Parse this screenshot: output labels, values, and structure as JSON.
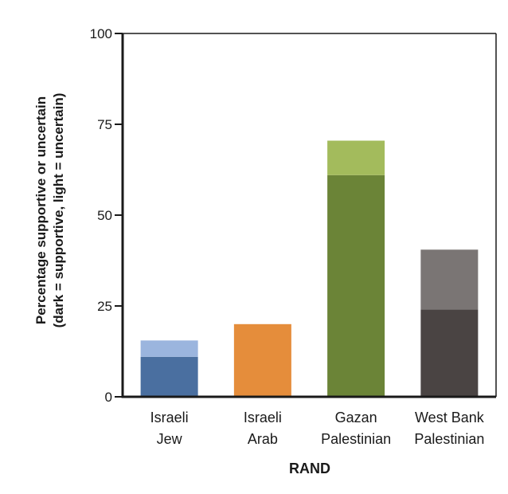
{
  "chart_data": {
    "type": "bar",
    "stacked": true,
    "categories": [
      [
        "Israeli",
        "Jew"
      ],
      [
        "Israeli",
        "Arab"
      ],
      [
        "Gazan",
        "Palestinian"
      ],
      [
        "West Bank",
        "Palestinian"
      ]
    ],
    "series": [
      {
        "values": [
          11,
          20,
          61,
          24
        ],
        "colors": [
          "#4a6fa0",
          "#e58d3b",
          "#6b8437",
          "#4a4443"
        ]
      },
      {
        "values": [
          4.5,
          0,
          9.5,
          16.5
        ],
        "colors": [
          "#9bb5de",
          "#e58d3b",
          "#a3bb5c",
          "#7a7574"
        ]
      }
    ],
    "ylabel": [
      "Percentage supportive or uncertain",
      "(dark = supportive, light = uncertain)"
    ],
    "xlabel": "RAND",
    "ylim": [
      0,
      100
    ],
    "yticks": [
      0,
      25,
      50,
      75,
      100
    ],
    "grid": false
  }
}
